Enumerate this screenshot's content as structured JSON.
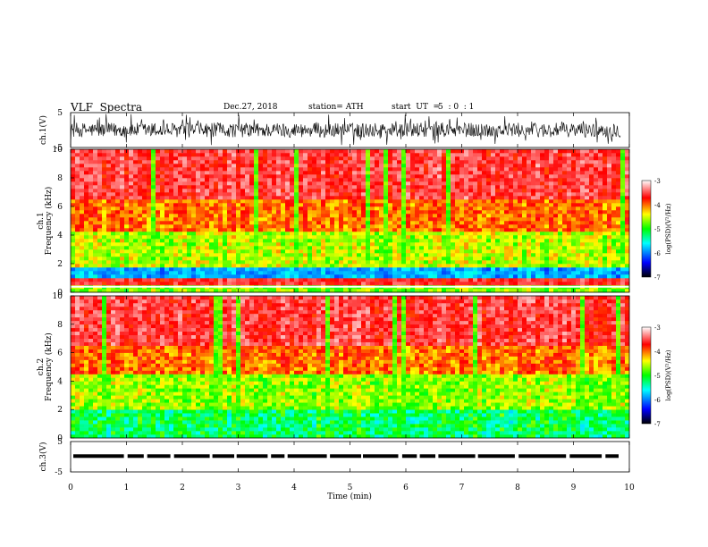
{
  "header": {
    "title": "VLF  Spectra",
    "date": "Dec.27, 2018",
    "station": "station= ATH",
    "start_label": "start  UT  =",
    "start_value": "5  : 0  : 1"
  },
  "colors": {
    "spectrogram_scale": [
      "#000000",
      "#0000ff",
      "#00ffff",
      "#00ff00",
      "#ffff00",
      "#ff0000",
      "#ffffff"
    ]
  },
  "chart_data": [
    {
      "type": "line",
      "name": "ch1-waveform",
      "ylabel": "ch.1(V)",
      "ylim": [
        -5,
        5
      ],
      "yticks": [
        "5",
        "-5"
      ],
      "xlim": [
        0,
        10
      ],
      "description_values": "noise waveform centred near 0 V"
    },
    {
      "type": "heatmap",
      "name": "ch1-spectrogram",
      "ylabel_channel": "ch.1",
      "ylabel": "Frequency  (kHz)",
      "ylim": [
        0,
        10
      ],
      "yticks": [
        "0",
        "2",
        "4",
        "6",
        "8",
        "10"
      ],
      "xlim": [
        0,
        10
      ],
      "colorbar": {
        "label": "log(PSD)(V²/Hz)",
        "ticks": [
          "-3",
          "-4",
          "-5",
          "-6",
          "-7"
        ],
        "range": [
          -7,
          -3
        ]
      }
    },
    {
      "type": "heatmap",
      "name": "ch2-spectrogram",
      "ylabel_channel": "ch.2",
      "ylabel": "Frequency  (kHz)",
      "ylim": [
        0,
        10
      ],
      "yticks": [
        "0",
        "2",
        "4",
        "6",
        "8",
        "10"
      ],
      "xlim": [
        0,
        10
      ],
      "colorbar": {
        "label": "log(PSD)(V²/Hz)",
        "ticks": [
          "-3",
          "-4",
          "-5",
          "-6",
          "-7"
        ],
        "range": [
          -7,
          -3
        ]
      }
    },
    {
      "type": "line",
      "name": "ch3-waveform",
      "ylabel": "ch.3(V)",
      "ylim": [
        -5,
        5
      ],
      "yticks": [
        "5",
        "-5"
      ],
      "xlim": [
        0,
        10
      ],
      "xlabel": "Time  (min)",
      "xticks": [
        "0",
        "1",
        "2",
        "3",
        "4",
        "5",
        "6",
        "7",
        "8",
        "9",
        "10"
      ]
    }
  ]
}
